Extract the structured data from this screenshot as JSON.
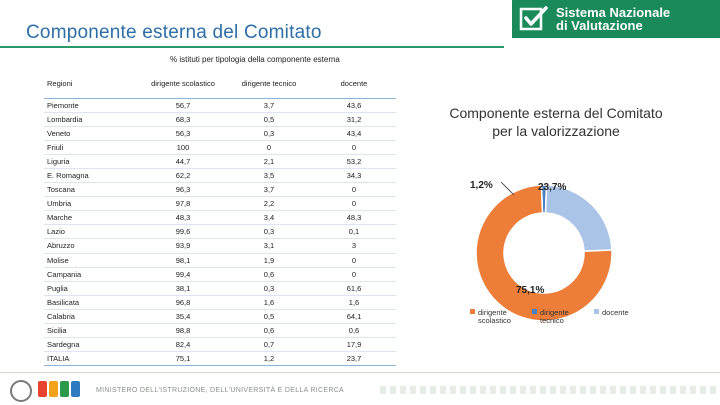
{
  "slide": {
    "title": "Componente esterna del Comitato",
    "side_text": "Componente esterna del Comitato per la valorizzazione"
  },
  "brand": {
    "line1": "Sistema Nazionale",
    "line2": "di Valutazione",
    "color": "#1b8a5a"
  },
  "table": {
    "caption": "% istituti per tipologia della componente esterna",
    "headers": [
      "Regioni",
      "dirigente scolastico",
      "dirigente tecnico",
      "docente"
    ],
    "rows": [
      {
        "region": "Piemonte",
        "dirigente_scolastico": "56,7",
        "dirigente_tecnico": "3,7",
        "docente": "43,6"
      },
      {
        "region": "Lombardia",
        "dirigente_scolastico": "68,3",
        "dirigente_tecnico": "0,5",
        "docente": "31,2"
      },
      {
        "region": "Veneto",
        "dirigente_scolastico": "56,3",
        "dirigente_tecnico": "0,3",
        "docente": "43,4"
      },
      {
        "region": "Friuli",
        "dirigente_scolastico": "100",
        "dirigente_tecnico": "0",
        "docente": "0"
      },
      {
        "region": "Liguria",
        "dirigente_scolastico": "44,7",
        "dirigente_tecnico": "2,1",
        "docente": "53,2"
      },
      {
        "region": "E. Romagna",
        "dirigente_scolastico": "62,2",
        "dirigente_tecnico": "3,5",
        "docente": "34,3"
      },
      {
        "region": "Toscana",
        "dirigente_scolastico": "96,3",
        "dirigente_tecnico": "3,7",
        "docente": "0"
      },
      {
        "region": "Umbria",
        "dirigente_scolastico": "97,8",
        "dirigente_tecnico": "2,2",
        "docente": "0"
      },
      {
        "region": "Marche",
        "dirigente_scolastico": "48,3",
        "dirigente_tecnico": "3,4",
        "docente": "48,3"
      },
      {
        "region": "Lazio",
        "dirigente_scolastico": "99,6",
        "dirigente_tecnico": "0,3",
        "docente": "0,1"
      },
      {
        "region": "Abruzzo",
        "dirigente_scolastico": "93,9",
        "dirigente_tecnico": "3,1",
        "docente": "3"
      },
      {
        "region": "Molise",
        "dirigente_scolastico": "98,1",
        "dirigente_tecnico": "1,9",
        "docente": "0"
      },
      {
        "region": "Campania",
        "dirigente_scolastico": "99,4",
        "dirigente_tecnico": "0,6",
        "docente": "0"
      },
      {
        "region": "Puglia",
        "dirigente_scolastico": "38,1",
        "dirigente_tecnico": "0,3",
        "docente": "61,6"
      },
      {
        "region": "Basilicata",
        "dirigente_scolastico": "96,8",
        "dirigente_tecnico": "1,6",
        "docente": "1,6"
      },
      {
        "region": "Calabria",
        "dirigente_scolastico": "35,4",
        "dirigente_tecnico": "0,5",
        "docente": "64,1"
      },
      {
        "region": "Sicilia",
        "dirigente_scolastico": "98,8",
        "dirigente_tecnico": "0,6",
        "docente": "0,6"
      },
      {
        "region": "Sardegna",
        "dirigente_scolastico": "82,4",
        "dirigente_tecnico": "0,7",
        "docente": "17,9"
      },
      {
        "region": "ITALIA",
        "dirigente_scolastico": "75,1",
        "dirigente_tecnico": "1,2",
        "docente": "23,7"
      }
    ]
  },
  "chart_data": {
    "type": "pie",
    "title": "",
    "categories": [
      "dirigente scolastico",
      "dirigente tecnico",
      "docente"
    ],
    "values": [
      75.1,
      1.2,
      23.7
    ],
    "labels": [
      "75,1%",
      "1,2%",
      "23,7%"
    ],
    "colors": [
      "#ec7e3a",
      "#4a7fc0",
      "#a9c4e6"
    ],
    "legend_position": "bottom"
  },
  "footer": {
    "ministry": "MINISTERO DELL'ISTRUZIONE, DELL'UNIVERSITÀ E DELLA RICERCA",
    "logo_colors": [
      "#e8432f",
      "#f3a21b",
      "#2b9a4a",
      "#2f7bc2"
    ]
  }
}
